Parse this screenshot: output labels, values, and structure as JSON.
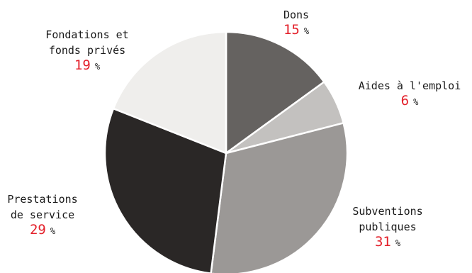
{
  "chart_data": {
    "type": "pie",
    "start_angle_deg": 0,
    "direction": "clockwise",
    "slices": [
      {
        "label_lines": [
          "Dons"
        ],
        "value": 15,
        "unit": "%",
        "color": "#656260"
      },
      {
        "label_lines": [
          "Aides à l'emploi"
        ],
        "value": 6,
        "unit": "%",
        "color": "#c3c1bf"
      },
      {
        "label_lines": [
          "Subventions",
          "publiques"
        ],
        "value": 31,
        "unit": "%",
        "color": "#9b9896"
      },
      {
        "label_lines": [
          "Prestations",
          "de service"
        ],
        "value": 29,
        "unit": "%",
        "color": "#2a2726"
      },
      {
        "label_lines": [
          "Fondations et",
          "fonds privés"
        ],
        "value": 19,
        "unit": "%",
        "color": "#efeeec"
      }
    ],
    "slice_border_color": "#ffffff"
  }
}
